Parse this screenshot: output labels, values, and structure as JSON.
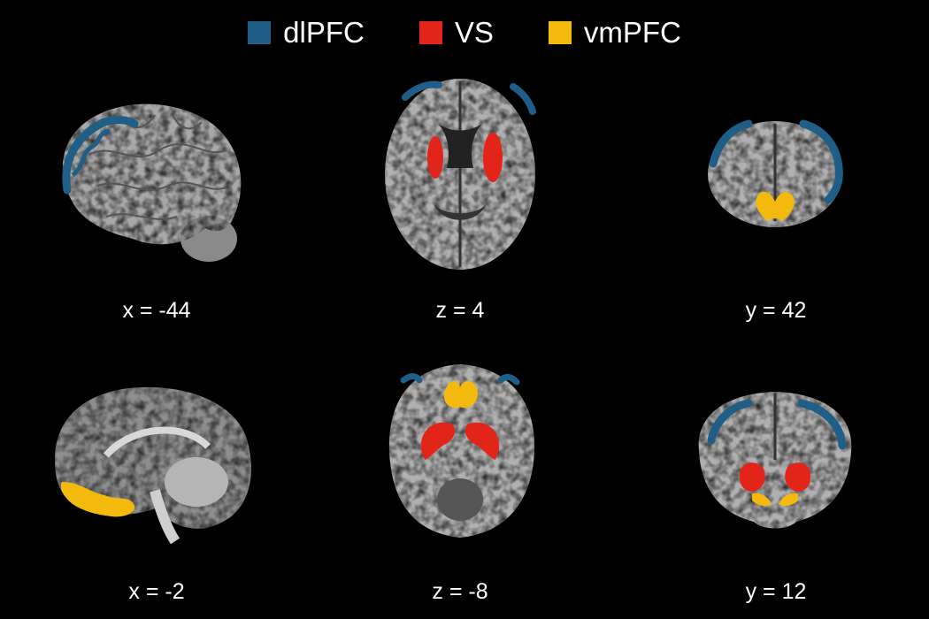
{
  "legend": [
    {
      "label": "dlPFC",
      "color": "#1f5f87"
    },
    {
      "label": "VS",
      "color": "#e32418"
    },
    {
      "label": "vmPFC",
      "color": "#f4b90d"
    }
  ],
  "slices": [
    {
      "view": "sagittal",
      "label": "x = -44",
      "regions": [
        "dlPFC"
      ]
    },
    {
      "view": "axial",
      "label": "z = 4",
      "regions": [
        "dlPFC",
        "VS"
      ]
    },
    {
      "view": "coronal",
      "label": "y = 42",
      "regions": [
        "dlPFC",
        "vmPFC"
      ]
    },
    {
      "view": "sagittal",
      "label": "x = -2",
      "regions": [
        "vmPFC"
      ]
    },
    {
      "view": "axial",
      "label": "z = -8",
      "regions": [
        "dlPFC",
        "VS",
        "vmPFC"
      ]
    },
    {
      "view": "coronal",
      "label": "y = 12",
      "regions": [
        "dlPFC",
        "VS",
        "vmPFC"
      ]
    }
  ]
}
